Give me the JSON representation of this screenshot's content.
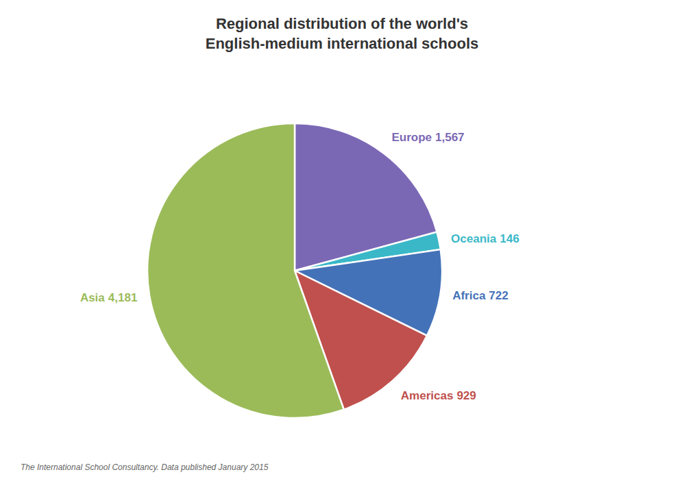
{
  "chart_data": {
    "type": "pie",
    "title": "Regional distribution of  the world's\nEnglish-medium international schools",
    "categories": [
      "Europe",
      "Oceania",
      "Africa",
      "Americas",
      "Asia"
    ],
    "values": [
      1567,
      146,
      722,
      929,
      4181
    ],
    "value_labels": [
      "1,567",
      "146",
      "722",
      "929",
      "4,181"
    ],
    "colors": [
      "#7b68b5",
      "#3ab8c8",
      "#4472b8",
      "#c0504d",
      "#9bbb59"
    ],
    "data_labels": true,
    "annotations": [
      "The International School Consultancy. Data published January 2015"
    ]
  }
}
